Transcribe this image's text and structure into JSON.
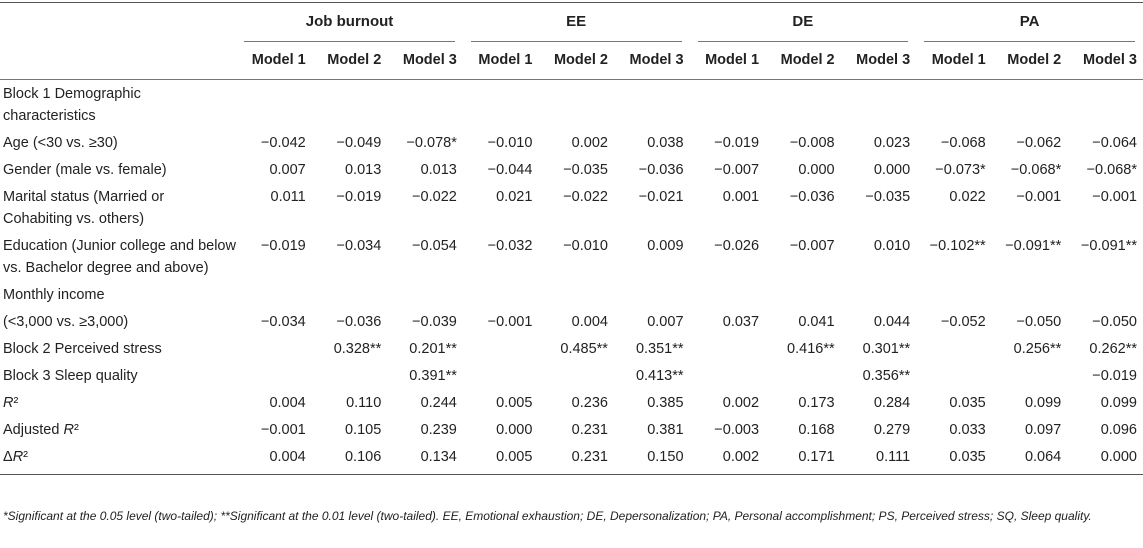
{
  "groups": [
    "Job burnout",
    "EE",
    "DE",
    "PA"
  ],
  "models": [
    "Model 1",
    "Model 2",
    "Model 3",
    "Model 1",
    "Model 2",
    "Model 3",
    "Model 1",
    "Model 2",
    "Model 3",
    "Model 1",
    "Model 2",
    "Model 3"
  ],
  "rows": [
    {
      "label": "Block 1 Demographic characteristics",
      "values": [
        "",
        "",
        "",
        "",
        "",
        "",
        "",
        "",
        "",
        "",
        "",
        ""
      ]
    },
    {
      "label": "Age (<30 vs. ≥30)",
      "values": [
        "−0.042",
        "−0.049",
        "−0.078*",
        "−0.010",
        "0.002",
        "0.038",
        "−0.019",
        "−0.008",
        "0.023",
        "−0.068",
        "−0.062",
        "−0.064"
      ]
    },
    {
      "label": "Gender (male vs. female)",
      "values": [
        "0.007",
        "0.013",
        "0.013",
        "−0.044",
        "−0.035",
        "−0.036",
        "−0.007",
        "0.000",
        "0.000",
        "−0.073*",
        "−0.068*",
        "−0.068*"
      ]
    },
    {
      "label": "Marital status (Married or Cohabiting vs. others)",
      "values": [
        "0.011",
        "−0.019",
        "−0.022",
        "0.021",
        "−0.022",
        "−0.021",
        "0.001",
        "−0.036",
        "−0.035",
        "0.022",
        "−0.001",
        "−0.001"
      ]
    },
    {
      "label": "Education (Junior college and below vs. Bachelor degree and above)",
      "values": [
        "−0.019",
        "−0.034",
        "−0.054",
        "−0.032",
        "−0.010",
        "0.009",
        "−0.026",
        "−0.007",
        "0.010",
        "−0.102**",
        "−0.091**",
        "−0.091**"
      ]
    },
    {
      "label": "Monthly income",
      "values": [
        "",
        "",
        "",
        "",
        "",
        "",
        "",
        "",
        "",
        "",
        "",
        ""
      ]
    },
    {
      "label": "(<3,000 vs. ≥3,000)",
      "values": [
        "−0.034",
        "−0.036",
        "−0.039",
        "−0.001",
        "0.004",
        "0.007",
        "0.037",
        "0.041",
        "0.044",
        "−0.052",
        "−0.050",
        "−0.050"
      ]
    },
    {
      "label": "Block 2 Perceived stress",
      "values": [
        "",
        "0.328**",
        "0.201**",
        "",
        "0.485**",
        "0.351**",
        "",
        "0.416**",
        "0.301**",
        "",
        "0.256**",
        "0.262**"
      ]
    },
    {
      "label": "Block 3 Sleep quality",
      "values": [
        "",
        "",
        "0.391**",
        "",
        "",
        "0.413**",
        "",
        "",
        "0.356**",
        "",
        "",
        "−0.019"
      ]
    },
    {
      "label": "R²",
      "values": [
        "0.004",
        "0.110",
        "0.244",
        "0.005",
        "0.236",
        "0.385",
        "0.002",
        "0.173",
        "0.284",
        "0.035",
        "0.099",
        "0.099"
      ]
    },
    {
      "label": "Adjusted R²",
      "values": [
        "−0.001",
        "0.105",
        "0.239",
        "0.000",
        "0.231",
        "0.381",
        "−0.003",
        "0.168",
        "0.279",
        "0.033",
        "0.097",
        "0.096"
      ]
    },
    {
      "label": "ΔR²",
      "values": [
        "0.004",
        "0.106",
        "0.134",
        "0.005",
        "0.231",
        "0.150",
        "0.002",
        "0.171",
        "0.111",
        "0.035",
        "0.064",
        "0.000"
      ]
    }
  ],
  "footnote": "*Significant at the 0.05 level (two-tailed); **Significant at the 0.01 level (two-tailed). EE, Emotional exhaustion; DE, Depersonalization; PA, Personal accomplishment; PS, Perceived stress; SQ, Sleep quality."
}
